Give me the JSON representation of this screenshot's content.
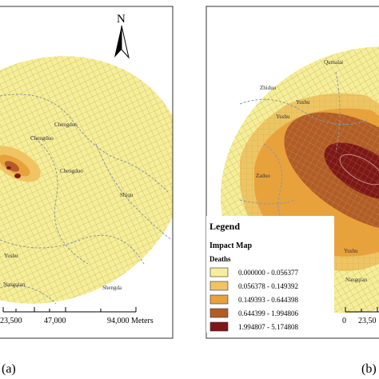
{
  "colors": {
    "class1": "#f6ee9a",
    "class2": "#f0c462",
    "class3": "#e8a23c",
    "class4": "#b25c28",
    "class5": "#7e1717",
    "grid": "#d9cf74",
    "roads": "#8d98a4",
    "frame": "#333333"
  },
  "panel_a": {
    "label": "(a)",
    "north_label": "N",
    "towns": [
      "Chengduo",
      "Chengduo",
      "Chengduo",
      "Shiqu",
      "Yushu",
      "Nangqian",
      "Shengda"
    ],
    "scale_labels": [
      "23,500",
      "47,000",
      "94,000 Meters"
    ]
  },
  "panel_b": {
    "label": "(b)",
    "towns": [
      "Qumalai",
      "Zhiduo",
      "Yushu",
      "Yushu",
      "Zaduo",
      "Yushu",
      "Nangqian"
    ],
    "scale_labels": [
      "0",
      "23,50"
    ]
  },
  "legend": {
    "title": "Legend",
    "subtitle": "Impact Map",
    "field": "Deaths",
    "classes": [
      {
        "range": "0.000000 - 0.056377",
        "color": "#f6ee9a"
      },
      {
        "range": "0.056378 - 0.149392",
        "color": "#f0c462"
      },
      {
        "range": "0.149393 - 0.644398",
        "color": "#e8a23c"
      },
      {
        "range": "0.644399 - 1.994806",
        "color": "#b25c28"
      },
      {
        "range": "1.994807 - 5.174808",
        "color": "#7e1717"
      }
    ]
  }
}
